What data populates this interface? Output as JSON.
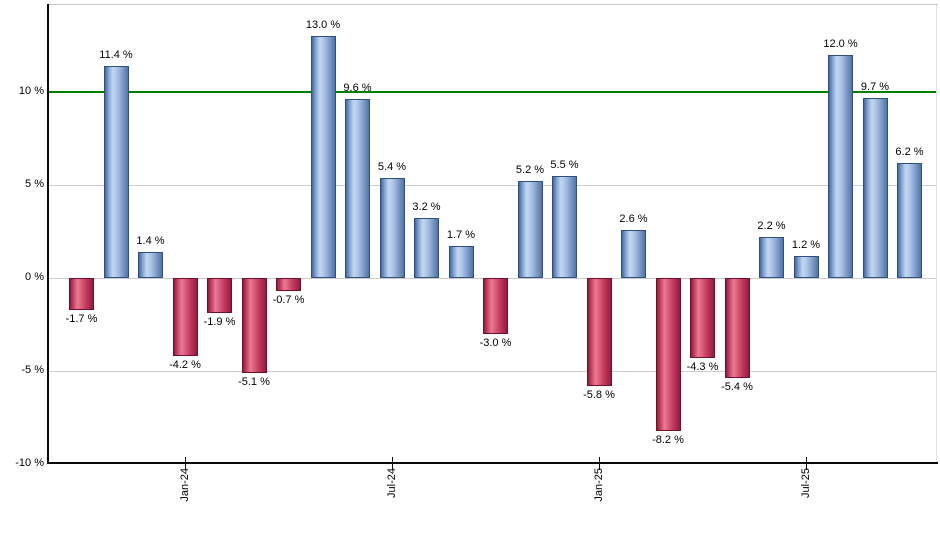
{
  "chart_data": {
    "type": "bar",
    "title": "",
    "xlabel": "",
    "ylabel": "",
    "values": [
      -1.7,
      11.4,
      1.4,
      -4.2,
      -1.9,
      -5.1,
      -0.7,
      13.0,
      9.6,
      5.4,
      3.2,
      1.7,
      -3.0,
      5.2,
      5.5,
      -5.8,
      2.6,
      -8.2,
      -4.3,
      -5.4,
      2.2,
      1.2,
      12.0,
      9.7,
      6.2
    ],
    "bar_labels": [
      "-1.7 %",
      "11.4 %",
      "1.4 %",
      "-4.2 %",
      "-1.9 %",
      "-5.1 %",
      "-0.7 %",
      "13.0 %",
      "9.6 %",
      "5.4 %",
      "3.2 %",
      "1.7 %",
      "-3.0 %",
      "5.2 %",
      "5.5 %",
      "-5.8 %",
      "2.6 %",
      "-8.2 %",
      "-4.3 %",
      "-5.4 %",
      "2.2 %",
      "1.2 %",
      "12.0 %",
      "9.7 %",
      "6.2 %"
    ],
    "x_ticks": [
      {
        "label": "Jan-24",
        "bar_index": 3
      },
      {
        "label": "Jul-24",
        "bar_index": 9
      },
      {
        "label": "Jan-25",
        "bar_index": 15
      },
      {
        "label": "Jul-25",
        "bar_index": 21
      }
    ],
    "y_ticks": [
      {
        "label": "10 %",
        "value": 10,
        "grid": false
      },
      {
        "label": "5 %",
        "value": 5,
        "grid": true
      },
      {
        "label": "0 %",
        "value": 0,
        "grid": true
      },
      {
        "label": "-5 %",
        "value": -5,
        "grid": true
      },
      {
        "label": "-10 %",
        "value": -10,
        "grid": false
      }
    ],
    "ylim": [
      -10,
      14.7
    ],
    "reference_line": {
      "value": 10,
      "color": "#008000"
    },
    "colors": {
      "positive_bar_light": "#c4d6f0",
      "positive_bar_dark": "#46679e",
      "positive_bar_border": "#2f4f80",
      "negative_bar_light": "#e97b93",
      "negative_bar_dark": "#8e1c3e",
      "negative_bar_border": "#70102c",
      "gridline": "#cdcdcd",
      "axis": "#0a0a0a",
      "background": "#ffffff"
    },
    "grid": true,
    "legend": false
  }
}
